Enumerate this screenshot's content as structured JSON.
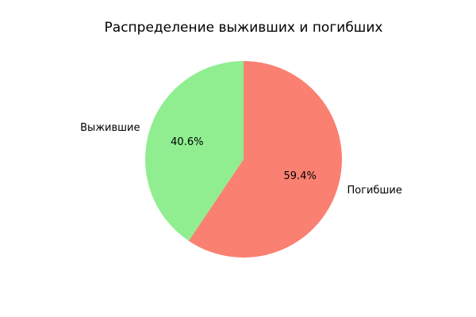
{
  "chart_data": {
    "type": "pie",
    "title": "Распределение выживших и погибших",
    "slices": [
      {
        "label": "Выжившие",
        "value": 40.6,
        "pct_label": "40.6%",
        "color": "#90ee90"
      },
      {
        "label": "Погибшие",
        "value": 59.4,
        "pct_label": "59.4%",
        "color": "#fa8072"
      }
    ],
    "start_angle_deg": 90,
    "direction": "counterclockwise",
    "legend": "none"
  }
}
